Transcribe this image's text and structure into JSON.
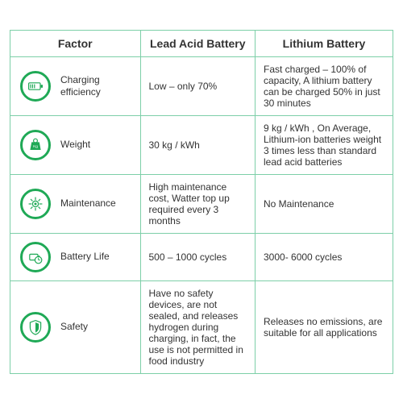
{
  "table": {
    "border_color": "#7dcfa8",
    "header_fontsize": 14,
    "body_fontsize": 12,
    "text_color": "#333333",
    "icon_color": "#1fa956",
    "columns": [
      "Factor",
      "Lead Acid Battery",
      "Lithium Battery"
    ],
    "col_widths": [
      "34%",
      "30%",
      "36%"
    ],
    "rows": [
      {
        "icon": "battery",
        "factor": "Charging efficiency",
        "lead": "Low – only 70%",
        "lithium": "Fast charged – 100% of capacity, A lithium battery can be charged 50% in just 30 minutes"
      },
      {
        "icon": "weight",
        "factor": "Weight",
        "lead": "30 kg / kWh",
        "lithium": "9 kg / kWh , On Average, Lithium-ion batteries weight 3 times less than standard lead acid batteries"
      },
      {
        "icon": "gear",
        "factor": "Maintenance",
        "lead": "High maintenance cost, Watter top up required every 3 months",
        "lithium": "No Maintenance"
      },
      {
        "icon": "clock",
        "factor": "Battery Life",
        "lead": "500 – 1000 cycles",
        "lithium": "3000- 6000 cycles"
      },
      {
        "icon": "shield",
        "factor": "Safety",
        "lead": "Have no safety devices, are not sealed, and releases hydrogen during charging, in fact, the use is not permitted in food industry",
        "lithium": "Releases no emissions, are suitable for all applications"
      }
    ]
  }
}
